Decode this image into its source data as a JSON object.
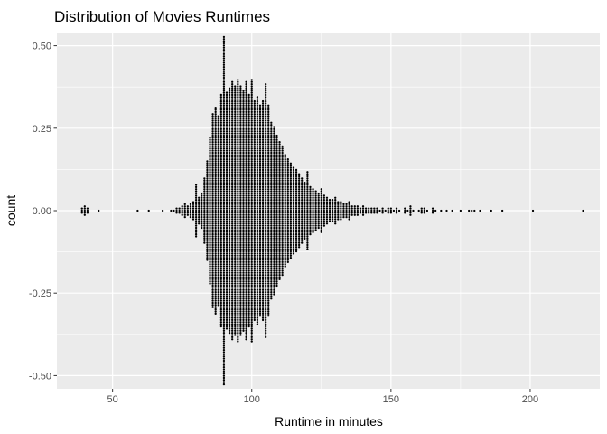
{
  "chart_data": {
    "type": "scatter",
    "subtype": "beeswarm-dotplot",
    "title": "Distribution of Movies Runtimes",
    "xlabel": "Runtime in minutes",
    "ylabel": "count",
    "xlim": [
      30,
      225
    ],
    "ylim": [
      -0.54,
      0.54
    ],
    "x_ticks": [
      50,
      100,
      150,
      200
    ],
    "y_ticks": [
      0.5,
      0.25,
      0.0,
      -0.25,
      -0.5
    ],
    "y_tick_labels": [
      "0.50",
      "0.25",
      "0.00",
      "-0.25",
      "-0.50"
    ],
    "grid": true,
    "legend": "none",
    "panel_background": "#ebebeb",
    "grid_color": "#ffffff",
    "dot_color": "#000000",
    "bin_width_minutes": 1,
    "dot_stack_step_count": 0.0065,
    "bins": [
      {
        "runtime": 39,
        "n": 3
      },
      {
        "runtime": 40,
        "n": 5
      },
      {
        "runtime": 41,
        "n": 3
      },
      {
        "runtime": 45,
        "n": 1
      },
      {
        "runtime": 59,
        "n": 1
      },
      {
        "runtime": 63,
        "n": 1
      },
      {
        "runtime": 68,
        "n": 1
      },
      {
        "runtime": 71,
        "n": 1
      },
      {
        "runtime": 72,
        "n": 1
      },
      {
        "runtime": 73,
        "n": 3
      },
      {
        "runtime": 74,
        "n": 3
      },
      {
        "runtime": 75,
        "n": 5
      },
      {
        "runtime": 76,
        "n": 7
      },
      {
        "runtime": 77,
        "n": 5
      },
      {
        "runtime": 78,
        "n": 7
      },
      {
        "runtime": 79,
        "n": 9
      },
      {
        "runtime": 80,
        "n": 25
      },
      {
        "runtime": 81,
        "n": 13
      },
      {
        "runtime": 82,
        "n": 17
      },
      {
        "runtime": 83,
        "n": 31
      },
      {
        "runtime": 84,
        "n": 47
      },
      {
        "runtime": 85,
        "n": 69
      },
      {
        "runtime": 86,
        "n": 91
      },
      {
        "runtime": 87,
        "n": 97
      },
      {
        "runtime": 88,
        "n": 89
      },
      {
        "runtime": 89,
        "n": 109
      },
      {
        "runtime": 90,
        "n": 163
      },
      {
        "runtime": 91,
        "n": 111
      },
      {
        "runtime": 92,
        "n": 115
      },
      {
        "runtime": 93,
        "n": 121
      },
      {
        "runtime": 94,
        "n": 117
      },
      {
        "runtime": 95,
        "n": 123
      },
      {
        "runtime": 96,
        "n": 117
      },
      {
        "runtime": 97,
        "n": 113
      },
      {
        "runtime": 98,
        "n": 121
      },
      {
        "runtime": 99,
        "n": 109
      },
      {
        "runtime": 100,
        "n": 123
      },
      {
        "runtime": 101,
        "n": 103
      },
      {
        "runtime": 102,
        "n": 107
      },
      {
        "runtime": 103,
        "n": 99
      },
      {
        "runtime": 104,
        "n": 103
      },
      {
        "runtime": 105,
        "n": 119
      },
      {
        "runtime": 106,
        "n": 99
      },
      {
        "runtime": 107,
        "n": 83
      },
      {
        "runtime": 108,
        "n": 79
      },
      {
        "runtime": 109,
        "n": 71
      },
      {
        "runtime": 110,
        "n": 65
      },
      {
        "runtime": 111,
        "n": 61
      },
      {
        "runtime": 112,
        "n": 53
      },
      {
        "runtime": 113,
        "n": 49
      },
      {
        "runtime": 114,
        "n": 45
      },
      {
        "runtime": 115,
        "n": 41
      },
      {
        "runtime": 116,
        "n": 39
      },
      {
        "runtime": 117,
        "n": 35
      },
      {
        "runtime": 118,
        "n": 31
      },
      {
        "runtime": 119,
        "n": 27
      },
      {
        "runtime": 120,
        "n": 37
      },
      {
        "runtime": 121,
        "n": 23
      },
      {
        "runtime": 122,
        "n": 21
      },
      {
        "runtime": 123,
        "n": 19
      },
      {
        "runtime": 124,
        "n": 17
      },
      {
        "runtime": 125,
        "n": 21
      },
      {
        "runtime": 126,
        "n": 15
      },
      {
        "runtime": 127,
        "n": 13
      },
      {
        "runtime": 128,
        "n": 11
      },
      {
        "runtime": 129,
        "n": 11
      },
      {
        "runtime": 130,
        "n": 13
      },
      {
        "runtime": 131,
        "n": 9
      },
      {
        "runtime": 132,
        "n": 9
      },
      {
        "runtime": 133,
        "n": 7
      },
      {
        "runtime": 134,
        "n": 7
      },
      {
        "runtime": 135,
        "n": 9
      },
      {
        "runtime": 136,
        "n": 5
      },
      {
        "runtime": 137,
        "n": 5
      },
      {
        "runtime": 138,
        "n": 5
      },
      {
        "runtime": 139,
        "n": 3
      },
      {
        "runtime": 140,
        "n": 5
      },
      {
        "runtime": 141,
        "n": 3
      },
      {
        "runtime": 142,
        "n": 3
      },
      {
        "runtime": 143,
        "n": 3
      },
      {
        "runtime": 144,
        "n": 3
      },
      {
        "runtime": 145,
        "n": 3
      },
      {
        "runtime": 146,
        "n": 1
      },
      {
        "runtime": 147,
        "n": 3
      },
      {
        "runtime": 148,
        "n": 1
      },
      {
        "runtime": 149,
        "n": 3
      },
      {
        "runtime": 150,
        "n": 3
      },
      {
        "runtime": 151,
        "n": 1
      },
      {
        "runtime": 152,
        "n": 3
      },
      {
        "runtime": 153,
        "n": 1
      },
      {
        "runtime": 155,
        "n": 3
      },
      {
        "runtime": 156,
        "n": 1
      },
      {
        "runtime": 157,
        "n": 5
      },
      {
        "runtime": 158,
        "n": 1
      },
      {
        "runtime": 160,
        "n": 1
      },
      {
        "runtime": 161,
        "n": 3
      },
      {
        "runtime": 162,
        "n": 3
      },
      {
        "runtime": 163,
        "n": 1
      },
      {
        "runtime": 165,
        "n": 3
      },
      {
        "runtime": 166,
        "n": 1
      },
      {
        "runtime": 168,
        "n": 1
      },
      {
        "runtime": 170,
        "n": 1
      },
      {
        "runtime": 172,
        "n": 1
      },
      {
        "runtime": 175,
        "n": 1
      },
      {
        "runtime": 178,
        "n": 1
      },
      {
        "runtime": 179,
        "n": 1
      },
      {
        "runtime": 180,
        "n": 1
      },
      {
        "runtime": 182,
        "n": 1
      },
      {
        "runtime": 186,
        "n": 1
      },
      {
        "runtime": 190,
        "n": 1
      },
      {
        "runtime": 201,
        "n": 1
      },
      {
        "runtime": 219,
        "n": 1
      }
    ]
  }
}
